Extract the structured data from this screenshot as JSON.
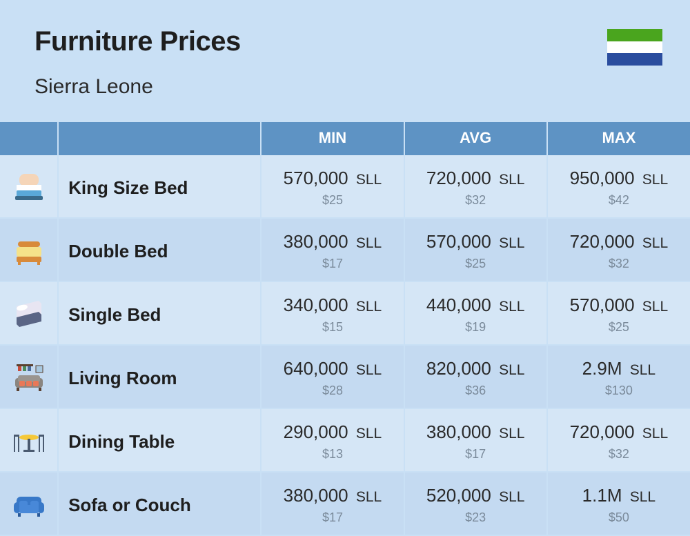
{
  "header": {
    "title": "Furniture Prices",
    "subtitle": "Sierra Leone"
  },
  "flag": {
    "stripes": [
      "#4aa51e",
      "#ffffff",
      "#2a4d9e"
    ]
  },
  "table": {
    "columns": [
      "",
      "",
      "MIN",
      "AVG",
      "MAX"
    ],
    "currency_code": "SLL",
    "rows": [
      {
        "icon": "king-bed",
        "name": "King Size Bed",
        "min": {
          "local": "570,000",
          "usd": "$25"
        },
        "avg": {
          "local": "720,000",
          "usd": "$32"
        },
        "max": {
          "local": "950,000",
          "usd": "$42"
        }
      },
      {
        "icon": "double-bed",
        "name": "Double Bed",
        "min": {
          "local": "380,000",
          "usd": "$17"
        },
        "avg": {
          "local": "570,000",
          "usd": "$25"
        },
        "max": {
          "local": "720,000",
          "usd": "$32"
        }
      },
      {
        "icon": "single-bed",
        "name": "Single Bed",
        "min": {
          "local": "340,000",
          "usd": "$15"
        },
        "avg": {
          "local": "440,000",
          "usd": "$19"
        },
        "max": {
          "local": "570,000",
          "usd": "$25"
        }
      },
      {
        "icon": "living-room",
        "name": "Living Room",
        "min": {
          "local": "640,000",
          "usd": "$28"
        },
        "avg": {
          "local": "820,000",
          "usd": "$36"
        },
        "max": {
          "local": "2.9M",
          "usd": "$130"
        }
      },
      {
        "icon": "dining-table",
        "name": "Dining Table",
        "min": {
          "local": "290,000",
          "usd": "$13"
        },
        "avg": {
          "local": "380,000",
          "usd": "$17"
        },
        "max": {
          "local": "720,000",
          "usd": "$32"
        }
      },
      {
        "icon": "sofa",
        "name": "Sofa or Couch",
        "min": {
          "local": "380,000",
          "usd": "$17"
        },
        "avg": {
          "local": "520,000",
          "usd": "$23"
        },
        "max": {
          "local": "1.1M",
          "usd": "$50"
        }
      }
    ]
  },
  "styling": {
    "background_color": "#c9e0f5",
    "header_bg": "#5e93c4",
    "row_alt_bg": [
      "#d5e6f6",
      "#c4daf1"
    ],
    "title_fontsize": 40,
    "subtitle_fontsize": 30,
    "column_header_fontsize": 22,
    "name_fontsize": 26,
    "price_fontsize": 26,
    "usd_fontsize": 18,
    "usd_color": "#7a8a9a",
    "border_color": "#c9e0f5",
    "icon_colors": {
      "king-bed": {
        "head": "#f5d5b8",
        "frame": "#5aa8d8",
        "pillow": "#fff"
      },
      "double-bed": {
        "frame": "#d88a3a",
        "mattress": "#f5e28a"
      },
      "single-bed": {
        "frame": "#5a6585",
        "mattress": "#e8e5f2",
        "pillow": "#fff"
      },
      "living-room": {
        "sofa": "#8a8580",
        "cushion": "#e87858",
        "shelf": "#5a4030"
      },
      "dining-table": {
        "top": "#f5c838",
        "legs": "#4a5a70",
        "chair": "#4a5a70"
      },
      "sofa": {
        "body": "#3878c8",
        "cushion": "#4888d8"
      }
    }
  }
}
